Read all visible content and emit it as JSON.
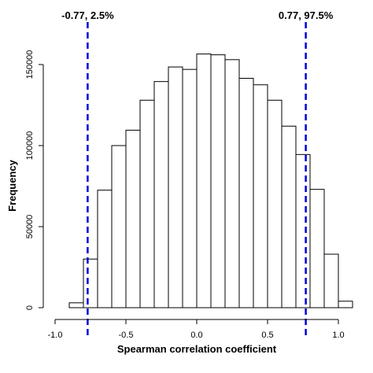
{
  "chart_data": {
    "type": "bar",
    "title": "",
    "xlabel": "Spearman correlation coefficient",
    "ylabel": "Frequency",
    "xlim": [
      -1.0,
      1.0
    ],
    "ylim": [
      0,
      160000
    ],
    "x_ticks": [
      {
        "value": -1.0,
        "label": "-1.0"
      },
      {
        "value": -0.5,
        "label": "-0.5"
      },
      {
        "value": 0.0,
        "label": "0.0"
      },
      {
        "value": 0.5,
        "label": "0.5"
      },
      {
        "value": 1.0,
        "label": "1.0"
      }
    ],
    "y_ticks": [
      {
        "value": 0,
        "label": "0"
      },
      {
        "value": 50000,
        "label": "50000"
      },
      {
        "value": 100000,
        "label": "100000"
      },
      {
        "value": 150000,
        "label": "150000"
      }
    ],
    "bins": [
      {
        "x0": -0.9,
        "x1": -0.8,
        "value": 3000
      },
      {
        "x0": -0.8,
        "x1": -0.7,
        "value": 30000
      },
      {
        "x0": -0.7,
        "x1": -0.6,
        "value": 72500
      },
      {
        "x0": -0.6,
        "x1": -0.5,
        "value": 100000
      },
      {
        "x0": -0.5,
        "x1": -0.4,
        "value": 109500
      },
      {
        "x0": -0.4,
        "x1": -0.3,
        "value": 128000
      },
      {
        "x0": -0.3,
        "x1": -0.2,
        "value": 139500
      },
      {
        "x0": -0.2,
        "x1": -0.1,
        "value": 148500
      },
      {
        "x0": -0.1,
        "x1": 0.0,
        "value": 147000
      },
      {
        "x0": 0.0,
        "x1": 0.1,
        "value": 156500
      },
      {
        "x0": 0.1,
        "x1": 0.2,
        "value": 156000
      },
      {
        "x0": 0.2,
        "x1": 0.3,
        "value": 153000
      },
      {
        "x0": 0.3,
        "x1": 0.4,
        "value": 141500
      },
      {
        "x0": 0.4,
        "x1": 0.5,
        "value": 137500
      },
      {
        "x0": 0.5,
        "x1": 0.6,
        "value": 128000
      },
      {
        "x0": 0.6,
        "x1": 0.7,
        "value": 112000
      },
      {
        "x0": 0.7,
        "x1": 0.8,
        "value": 94500
      },
      {
        "x0": 0.8,
        "x1": 0.9,
        "value": 73000
      },
      {
        "x0": 0.9,
        "x1": 1.0,
        "value": 33000
      },
      {
        "x0": 1.0,
        "x1": 1.1,
        "value": 4000
      }
    ],
    "reference_lines": [
      {
        "x": -0.77,
        "label": "-0.77, 2.5%",
        "color": "#0000dd",
        "style": "dashed"
      },
      {
        "x": 0.77,
        "label": "0.77, 97.5%",
        "color": "#0000dd",
        "style": "dashed"
      }
    ],
    "bar_fill": "#ffffff",
    "bar_stroke": "#000000",
    "grid": false,
    "legend": "none"
  }
}
